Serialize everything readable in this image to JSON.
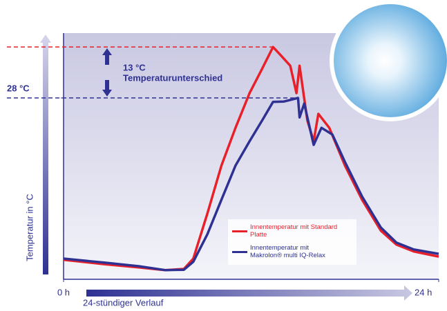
{
  "chart_data": {
    "type": "line",
    "y_axis_title": "Temperatur in °C",
    "x_axis_title": "24-stündiger Verlauf",
    "annotation_value": "13 °C",
    "annotation_text": "Temperaturunterschied",
    "xlim": [
      0,
      24
    ],
    "xticks": [
      {
        "value": 0,
        "label": "0 h"
      },
      {
        "value": 24,
        "label": "24 h"
      }
    ],
    "ylim": [
      -17.6,
      44.3
    ],
    "yticks": [
      {
        "value": 28,
        "label": "28 °C"
      }
    ],
    "dashed_levels": [
      {
        "value": 40.8,
        "color": "#e8202a"
      },
      {
        "value": 28,
        "color": "#2e3192"
      }
    ],
    "series": [
      {
        "name": "Innentemperatur mit Standard Platte",
        "color": "#e8202a",
        "x": [
          0,
          2.6,
          4.8,
          6.5,
          7.7,
          8.3,
          9.2,
          10.1,
          11,
          11.9,
          12.7,
          13.4,
          13.9,
          14.5,
          14.9,
          15.1,
          15.6,
          16,
          16.3,
          17,
          18,
          19.1,
          20.3,
          21.3,
          22.4,
          24
        ],
        "values": [
          -12.7,
          -13.8,
          -14.6,
          -15.3,
          -15.0,
          -12.4,
          -1.1,
          11.0,
          20.5,
          29.2,
          35.3,
          40.8,
          38.7,
          36.1,
          29.2,
          36.1,
          22.3,
          17.1,
          24.0,
          20.5,
          11.0,
          2.4,
          -5.4,
          -8.9,
          -10.6,
          -11.9
        ]
      },
      {
        "name": "Innentemperatur mit Makrolon® multi IQ-Relax",
        "color": "#2e3192",
        "x": [
          0,
          2.6,
          4.8,
          6.5,
          7.7,
          8.3,
          9.2,
          10.1,
          11,
          11.9,
          12.7,
          13.4,
          14.1,
          14.5,
          15.0,
          15.1,
          15.4,
          15.6,
          16,
          16.5,
          17.2,
          18,
          19.1,
          20.3,
          21.3,
          22.4,
          24
        ],
        "values": [
          -12.4,
          -13.4,
          -14.3,
          -15.3,
          -15.2,
          -13.2,
          -6.3,
          2.4,
          11.0,
          17.1,
          22.3,
          27.0,
          27.1,
          27.5,
          28.0,
          23.1,
          26.6,
          23.1,
          16.2,
          20.5,
          18.8,
          11.9,
          3.2,
          -4.6,
          -8.4,
          -10.1,
          -11.2
        ]
      }
    ]
  }
}
